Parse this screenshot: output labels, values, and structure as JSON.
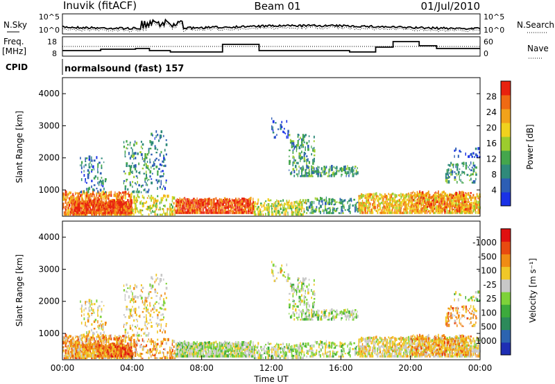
{
  "header": {
    "station": "Inuvik (fitACF)",
    "beam": "Beam 01",
    "date": "01/Jul/2010"
  },
  "noise_panel": {
    "left_label": "N.Sky",
    "right_label": "N.Search",
    "left_ticks": [
      "10^5",
      "10^0"
    ],
    "right_ticks": [
      "10^5",
      "10^0"
    ]
  },
  "freq_panel": {
    "left_label_1": "Freq.",
    "left_label_2": "[MHz]",
    "left_ticks": [
      "18",
      "8"
    ],
    "right_label": "Nave",
    "right_ticks": [
      "60",
      "0"
    ]
  },
  "cpid_panel": {
    "label": "CPID",
    "program": "normalsound (fast) 157"
  },
  "chart_data": [
    {
      "type": "heatmap",
      "name": "Power",
      "ylabel": "Slant Range [km]",
      "xlabel": "",
      "yticks": [
        1000,
        2000,
        3000,
        4000
      ],
      "ylim": [
        180,
        4500
      ],
      "xticks": [
        "00:00",
        "04:00",
        "08:00",
        "12:00",
        "16:00",
        "20:00",
        "00:00"
      ],
      "xlim_hours": [
        0,
        24
      ],
      "colorbar": {
        "label": "Power [dB]",
        "tick_labels": [
          "4",
          "8",
          "12",
          "16",
          "20",
          "24",
          "28"
        ],
        "colors": [
          "#1a32e6",
          "#2d5eb4",
          "#2f8a7a",
          "#44a64c",
          "#9ccc2e",
          "#f0d21e",
          "#f2a21a",
          "#ef6a14",
          "#e8220e"
        ]
      }
    },
    {
      "type": "heatmap",
      "name": "Velocity",
      "ylabel": "Slant Range [km]",
      "xlabel": "Time UT",
      "yticks": [
        1000,
        2000,
        3000,
        4000
      ],
      "ylim": [
        180,
        4500
      ],
      "xticks": [
        "00:00",
        "04:00",
        "08:00",
        "12:00",
        "16:00",
        "20:00",
        "00:00"
      ],
      "xlim_hours": [
        0,
        24
      ],
      "colorbar": {
        "label": "Velocity [m s⁻¹]",
        "tick_labels": [
          "1000",
          "500",
          "100",
          "25",
          "-25",
          "-100",
          "-500",
          "-1000"
        ],
        "colors": [
          "#1e2eb4",
          "#2c64b0",
          "#2c8a5a",
          "#3caa3c",
          "#7ed23a",
          "#c8c8c8",
          "#f0c828",
          "#f08c14",
          "#e84a10",
          "#e01010"
        ]
      }
    }
  ]
}
